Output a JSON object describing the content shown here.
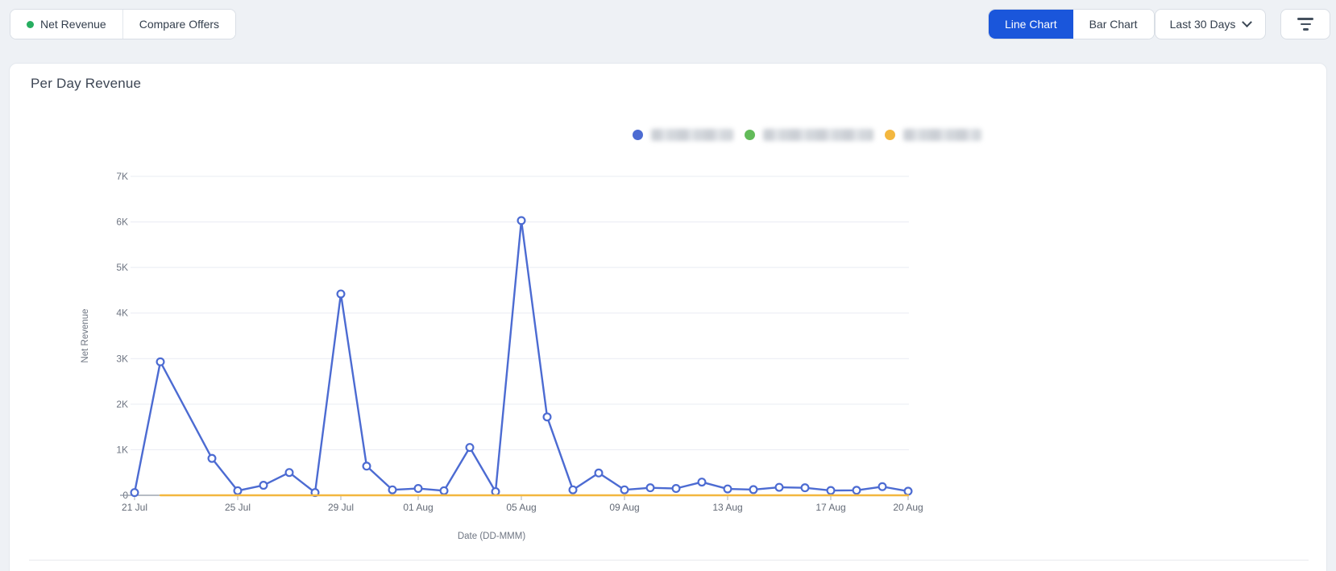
{
  "toolbar": {
    "series_tabs": [
      {
        "label": "Net Revenue",
        "dot_color": "#27ae60",
        "active": true
      },
      {
        "label": "Compare Offers",
        "active": false
      }
    ],
    "chart_type_tabs": [
      {
        "label": "Line Chart",
        "active": true
      },
      {
        "label": "Bar Chart",
        "active": false
      }
    ],
    "date_range": {
      "selected": "Last 30 Days"
    },
    "filter_button": {
      "icon": "filter-icon"
    }
  },
  "card": {
    "title": "Per Day Revenue"
  },
  "legend": [
    {
      "color": "#4c6bd2",
      "redacted": true,
      "text_width": 102
    },
    {
      "color": "#62bb59",
      "redacted": true,
      "text_width": 137
    },
    {
      "color": "#f3b73f",
      "redacted": true,
      "text_width": 97
    }
  ],
  "chart_data": {
    "type": "line",
    "title": "Per Day Revenue",
    "xlabel": "Date (DD-MMM)",
    "ylabel": "Net Revenue",
    "grid": true,
    "legend_position": "top-right",
    "ylim": [
      0,
      7000
    ],
    "yticks": [
      "0",
      "1K",
      "2K",
      "3K",
      "4K",
      "5K",
      "6K",
      "7K"
    ],
    "xtick_labels": [
      "21 Jul",
      "25 Jul",
      "29 Jul",
      "01 Aug",
      "05 Aug",
      "09 Aug",
      "13 Aug",
      "17 Aug",
      "20 Aug"
    ],
    "x": [
      "21 Jul",
      "22 Jul",
      "23 Jul",
      "24 Jul",
      "25 Jul",
      "26 Jul",
      "27 Jul",
      "28 Jul",
      "29 Jul",
      "30 Jul",
      "31 Jul",
      "01 Aug",
      "02 Aug",
      "03 Aug",
      "04 Aug",
      "05 Aug",
      "06 Aug",
      "07 Aug",
      "08 Aug",
      "09 Aug",
      "10 Aug",
      "11 Aug",
      "12 Aug",
      "13 Aug",
      "14 Aug",
      "15 Aug",
      "16 Aug",
      "17 Aug",
      "18 Aug",
      "19 Aug",
      "20 Aug"
    ],
    "series": [
      {
        "name": "(redacted)",
        "color": "#4c6bd2",
        "markers": true,
        "visible": true,
        "values": [
          60,
          2930,
          null,
          810,
          100,
          220,
          500,
          60,
          4420,
          640,
          120,
          150,
          100,
          1050,
          80,
          6030,
          1720,
          120,
          490,
          120,
          165,
          150,
          290,
          140,
          125,
          175,
          165,
          105,
          110,
          190,
          90
        ]
      },
      {
        "name": "(redacted)",
        "color": "#62bb59",
        "markers": false,
        "visible": false,
        "values": [
          null,
          null,
          null,
          null,
          null,
          null,
          null,
          null,
          null,
          null,
          null,
          null,
          null,
          null,
          null,
          null,
          null,
          null,
          null,
          null,
          null,
          null,
          null,
          null,
          null,
          null,
          null,
          null,
          null,
          null,
          null
        ]
      },
      {
        "name": "(redacted)",
        "color": "#f3b73f",
        "markers": false,
        "visible": true,
        "values": [
          null,
          0,
          0,
          0,
          0,
          0,
          0,
          0,
          0,
          0,
          0,
          0,
          0,
          0,
          0,
          0,
          0,
          0,
          0,
          0,
          0,
          0,
          0,
          0,
          0,
          0,
          0,
          0,
          0,
          0,
          0
        ]
      }
    ]
  }
}
